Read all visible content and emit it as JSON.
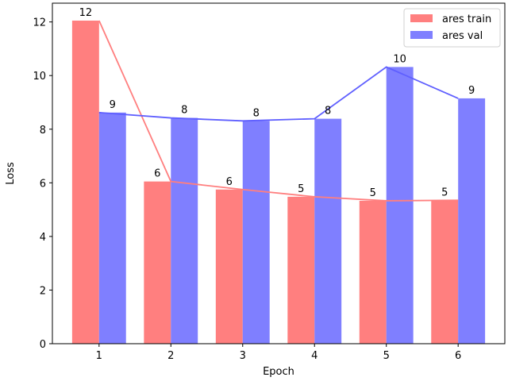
{
  "chart_data": {
    "type": "bar",
    "title": "",
    "xlabel": "Epoch",
    "ylabel": "Loss",
    "categories": [
      "1",
      "2",
      "3",
      "4",
      "5",
      "6"
    ],
    "ylim": [
      0,
      12.7
    ],
    "yticks": [
      "0",
      "2",
      "4",
      "6",
      "8",
      "10",
      "12"
    ],
    "grid": false,
    "legend_position": "top-right",
    "series": [
      {
        "name": "ares train",
        "color": "#ff7f7f",
        "line_color": "#ff7f7f",
        "values": [
          12.05,
          6.05,
          5.75,
          5.48,
          5.33,
          5.35
        ],
        "data_labels": [
          "12",
          "6",
          "6",
          "5",
          "5",
          "5"
        ]
      },
      {
        "name": "ares val",
        "color": "#7f7fff",
        "line_color": "#5f5fff",
        "values": [
          8.62,
          8.42,
          8.31,
          8.39,
          10.32,
          9.15
        ],
        "data_labels": [
          "9",
          "8",
          "8",
          "8",
          "10",
          "9"
        ]
      }
    ]
  }
}
